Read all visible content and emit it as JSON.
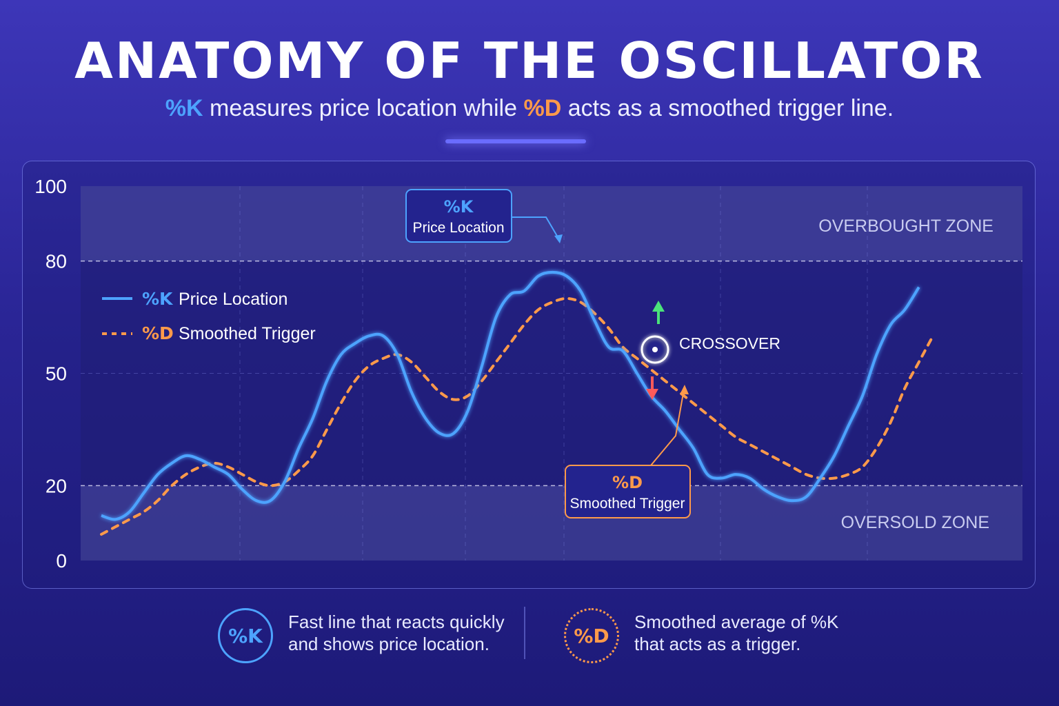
{
  "header": {
    "title": "ANATOMY OF THE OSCILLATOR",
    "subtitle_k": "%K",
    "subtitle_mid": " measures price location while ",
    "subtitle_d": "%D",
    "subtitle_end": " acts as a smoothed trigger line."
  },
  "colors": {
    "k_line": "#4da3ff",
    "d_line": "#ff9a4a",
    "up_arrow": "#4be37a",
    "down_arrow": "#ff5a5a"
  },
  "chart_data": {
    "type": "line",
    "y_ticks": [
      "100",
      "80",
      "50",
      "20",
      "0"
    ],
    "ylim": [
      0,
      100
    ],
    "xlim": [
      0,
      117
    ],
    "threshold_lines": [
      80,
      20
    ],
    "zones": [
      {
        "label": "OVERBOUGHT ZONE",
        "from": 80,
        "to": 100
      },
      {
        "label": "OVERSOLD ZONE",
        "from": 0,
        "to": 20
      }
    ],
    "series": [
      {
        "name": "%K",
        "legend_text": "Price Location",
        "style": "solid",
        "x": [
          0,
          2,
          4,
          6,
          8,
          10,
          12,
          14,
          16,
          18,
          20,
          22,
          24,
          26,
          28,
          30,
          32,
          34,
          36,
          38,
          40,
          42,
          44,
          46,
          48,
          50,
          52,
          54,
          56,
          58,
          60,
          62,
          64,
          66,
          68,
          70,
          72,
          74,
          76,
          78,
          80,
          82,
          84,
          86,
          88,
          90,
          92,
          94,
          96,
          98,
          100,
          102,
          104,
          106,
          108,
          110,
          112,
          114,
          116
        ],
        "values": [
          12,
          11,
          13,
          18,
          23,
          26,
          28,
          27,
          25,
          23,
          19,
          16,
          16,
          21,
          30,
          38,
          48,
          55,
          58,
          60,
          60,
          55,
          45,
          38,
          34,
          34,
          40,
          52,
          65,
          71,
          72,
          76,
          77,
          76,
          72,
          64,
          57,
          56,
          50,
          44,
          40,
          35,
          30,
          23,
          22,
          23,
          22,
          19,
          17,
          16,
          17,
          22,
          28,
          36,
          44,
          55,
          63,
          67,
          73
        ]
      },
      {
        "name": "%D",
        "legend_text": "Smoothed Trigger",
        "style": "dashed",
        "x": [
          0,
          2,
          4,
          6,
          8,
          10,
          12,
          14,
          16,
          18,
          20,
          22,
          24,
          26,
          28,
          30,
          32,
          34,
          36,
          38,
          40,
          42,
          44,
          46,
          48,
          50,
          52,
          54,
          56,
          58,
          60,
          62,
          64,
          66,
          68,
          70,
          72,
          74,
          76,
          78,
          80,
          82,
          84,
          86,
          88,
          90,
          92,
          94,
          96,
          98,
          100,
          102,
          104,
          106,
          108,
          110,
          112,
          114,
          116,
          118
        ],
        "values": [
          7,
          9,
          11,
          13,
          16,
          20,
          23,
          25,
          26,
          25,
          23,
          21,
          20,
          21,
          24,
          28,
          35,
          42,
          48,
          52,
          54,
          55,
          53,
          49,
          45,
          43,
          44,
          48,
          53,
          58,
          63,
          67,
          69,
          70,
          69,
          66,
          62,
          57,
          54,
          51,
          48,
          45,
          42,
          39,
          36,
          33,
          31,
          29,
          27,
          25,
          23,
          22,
          22,
          23,
          25,
          30,
          37,
          46,
          53,
          60
        ]
      }
    ],
    "legend": [
      {
        "key": "%K",
        "label": "Price Location"
      },
      {
        "key": "%D",
        "label": "Smoothed Trigger"
      }
    ],
    "annotations": {
      "k_callout_key": "%K",
      "k_callout_label": "Price Location",
      "d_callout_key": "%D",
      "d_callout_label": "Smoothed Trigger",
      "crossover": "CROSSOVER"
    },
    "grid": true
  },
  "footer": {
    "k_badge": "%K",
    "k_desc": "Fast line that reacts quickly and shows price location.",
    "d_badge": "%D",
    "d_desc": "Smoothed average of %K that acts as a trigger."
  }
}
